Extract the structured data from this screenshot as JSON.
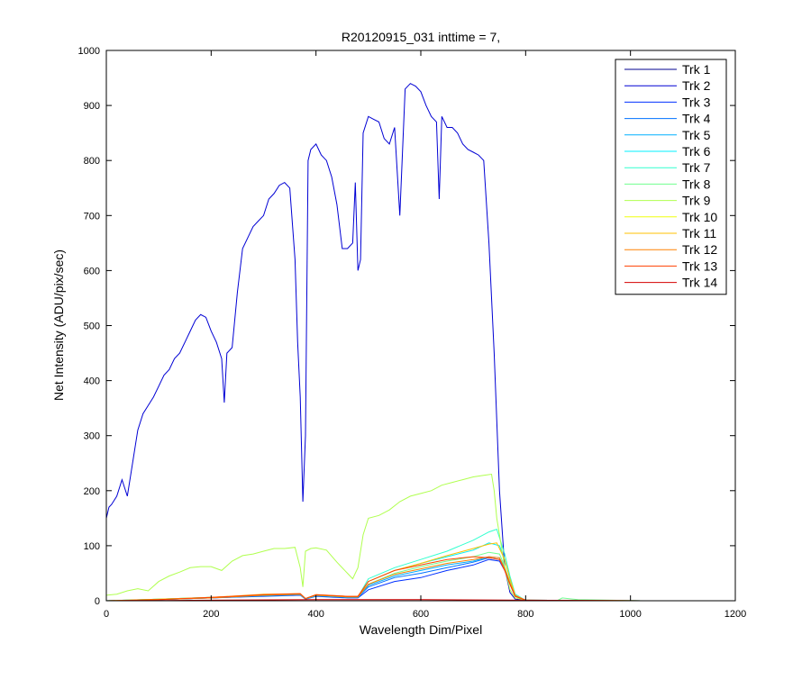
{
  "chart_data": {
    "type": "line",
    "title": "R20120915_031 inttime = 7,",
    "xlabel": "Wavelength Dim/Pixel",
    "ylabel": "Net Intensity (ADU/pix/sec)",
    "xlim": [
      0,
      1200
    ],
    "ylim": [
      0,
      1000
    ],
    "xticks": [
      "0",
      "200",
      "400",
      "600",
      "800",
      "1000",
      "1200"
    ],
    "yticks": [
      "0",
      "100",
      "200",
      "300",
      "400",
      "500",
      "600",
      "700",
      "800",
      "900",
      "1000"
    ],
    "grid": false,
    "legend_position": "top-right",
    "series": [
      {
        "name": "Trk 1",
        "color": "#00008F",
        "x": [],
        "y": []
      },
      {
        "name": "Trk 2",
        "color": "#0000D4",
        "x": [
          0,
          5,
          10,
          20,
          30,
          40,
          50,
          60,
          70,
          80,
          90,
          100,
          110,
          120,
          130,
          140,
          150,
          160,
          170,
          180,
          190,
          200,
          210,
          220,
          225,
          230,
          240,
          250,
          260,
          270,
          280,
          290,
          300,
          310,
          320,
          330,
          340,
          350,
          360,
          365,
          370,
          375,
          380,
          385,
          390,
          400,
          410,
          420,
          430,
          440,
          450,
          460,
          470,
          475,
          480,
          485,
          490,
          500,
          510,
          520,
          530,
          540,
          550,
          560,
          570,
          580,
          590,
          600,
          610,
          620,
          630,
          635,
          640,
          650,
          660,
          670,
          680,
          690,
          700,
          710,
          720,
          730,
          740,
          750,
          760,
          770,
          780,
          790,
          800,
          850,
          900,
          950,
          1000,
          1023
        ],
        "y": [
          150,
          170,
          175,
          190,
          220,
          190,
          250,
          310,
          340,
          355,
          370,
          390,
          410,
          420,
          440,
          450,
          470,
          490,
          510,
          520,
          515,
          490,
          470,
          440,
          360,
          450,
          460,
          560,
          640,
          660,
          680,
          690,
          700,
          730,
          740,
          755,
          760,
          750,
          620,
          470,
          370,
          180,
          300,
          800,
          820,
          830,
          810,
          800,
          770,
          720,
          640,
          640,
          650,
          760,
          600,
          620,
          850,
          880,
          875,
          870,
          840,
          830,
          860,
          700,
          930,
          940,
          935,
          925,
          900,
          880,
          870,
          730,
          880,
          860,
          860,
          850,
          830,
          820,
          815,
          810,
          800,
          650,
          450,
          200,
          60,
          15,
          3,
          2,
          1,
          0,
          0,
          0,
          0,
          0
        ]
      },
      {
        "name": "Trk 3",
        "color": "#0030FF",
        "x": [
          0,
          100,
          200,
          300,
          370,
          380,
          400,
          460,
          480,
          500,
          550,
          600,
          650,
          700,
          730,
          750,
          760,
          770,
          780,
          800,
          1023
        ],
        "y": [
          0,
          2,
          5,
          8,
          10,
          3,
          8,
          5,
          5,
          20,
          35,
          42,
          55,
          65,
          75,
          72,
          55,
          30,
          8,
          1,
          0
        ]
      },
      {
        "name": "Trk 4",
        "color": "#0070FF",
        "x": [
          0,
          100,
          200,
          300,
          370,
          380,
          400,
          460,
          480,
          500,
          550,
          600,
          650,
          700,
          730,
          750,
          760,
          770,
          780,
          800,
          1023
        ],
        "y": [
          0,
          2,
          5,
          9,
          11,
          3,
          9,
          6,
          6,
          25,
          42,
          50,
          60,
          70,
          78,
          75,
          58,
          32,
          9,
          1,
          0
        ]
      },
      {
        "name": "Trk 5",
        "color": "#00B0FF",
        "x": [
          0,
          100,
          200,
          300,
          370,
          380,
          400,
          460,
          480,
          500,
          550,
          600,
          650,
          700,
          730,
          750,
          760,
          770,
          780,
          800,
          1023
        ],
        "y": [
          0,
          2,
          5,
          9,
          11,
          3,
          9,
          6,
          6,
          28,
          45,
          55,
          65,
          72,
          80,
          78,
          60,
          34,
          9,
          1,
          0
        ]
      },
      {
        "name": "Trk 6",
        "color": "#00F0FF",
        "x": [
          0,
          100,
          200,
          300,
          370,
          380,
          400,
          460,
          480,
          500,
          550,
          600,
          650,
          700,
          730,
          750,
          760,
          770,
          780,
          800,
          1023
        ],
        "y": [
          0,
          3,
          6,
          10,
          12,
          4,
          10,
          7,
          7,
          35,
          55,
          68,
          80,
          92,
          105,
          100,
          75,
          40,
          10,
          1,
          0
        ]
      },
      {
        "name": "Trk 7",
        "color": "#30FFCF",
        "x": [
          0,
          100,
          200,
          300,
          370,
          380,
          400,
          460,
          480,
          500,
          550,
          600,
          650,
          700,
          730,
          745,
          760,
          770,
          780,
          800,
          1023
        ],
        "y": [
          0,
          3,
          6,
          10,
          12,
          4,
          10,
          7,
          7,
          40,
          60,
          75,
          90,
          110,
          125,
          130,
          85,
          45,
          12,
          1,
          0
        ]
      },
      {
        "name": "Trk 8",
        "color": "#70FF8F",
        "x": [
          0,
          100,
          200,
          300,
          370,
          380,
          400,
          460,
          480,
          500,
          550,
          600,
          650,
          700,
          730,
          750,
          760,
          770,
          780,
          800,
          860,
          870,
          900,
          1023
        ],
        "y": [
          0,
          3,
          6,
          10,
          12,
          4,
          10,
          7,
          7,
          30,
          50,
          62,
          72,
          80,
          88,
          85,
          62,
          34,
          9,
          1,
          0,
          5,
          2,
          0
        ]
      },
      {
        "name": "Trk 9",
        "color": "#B0FF4F",
        "x": [
          0,
          20,
          40,
          60,
          80,
          100,
          120,
          140,
          160,
          180,
          200,
          220,
          240,
          260,
          280,
          300,
          320,
          340,
          360,
          370,
          375,
          380,
          390,
          400,
          420,
          440,
          460,
          470,
          480,
          490,
          500,
          520,
          540,
          560,
          580,
          600,
          620,
          640,
          660,
          680,
          700,
          720,
          735,
          740,
          745,
          750,
          760,
          770,
          780,
          800,
          850,
          1023
        ],
        "y": [
          10,
          12,
          18,
          22,
          18,
          35,
          45,
          52,
          60,
          62,
          62,
          55,
          72,
          82,
          85,
          90,
          95,
          95,
          97,
          60,
          25,
          90,
          95,
          96,
          92,
          70,
          50,
          40,
          60,
          120,
          150,
          155,
          165,
          180,
          190,
          195,
          200,
          210,
          215,
          220,
          225,
          228,
          230,
          200,
          150,
          120,
          60,
          20,
          5,
          1,
          0,
          0
        ]
      },
      {
        "name": "Trk 10",
        "color": "#F0FF0F",
        "x": [],
        "y": []
      },
      {
        "name": "Trk 11",
        "color": "#FFC000",
        "x": [
          0,
          100,
          200,
          300,
          370,
          380,
          400,
          460,
          480,
          500,
          550,
          600,
          650,
          700,
          730,
          745,
          760,
          770,
          780,
          800,
          1023
        ],
        "y": [
          0,
          3,
          6,
          12,
          13,
          4,
          11,
          8,
          8,
          35,
          55,
          68,
          82,
          95,
          103,
          105,
          75,
          40,
          10,
          1,
          0
        ]
      },
      {
        "name": "Trk 12",
        "color": "#FF8000",
        "x": [
          0,
          100,
          200,
          300,
          370,
          380,
          400,
          460,
          480,
          500,
          550,
          600,
          650,
          700,
          730,
          750,
          760,
          770,
          780,
          800,
          1023
        ],
        "y": [
          0,
          2,
          5,
          10,
          12,
          4,
          10,
          7,
          7,
          30,
          48,
          58,
          68,
          75,
          80,
          78,
          58,
          32,
          9,
          1,
          0
        ]
      },
      {
        "name": "Trk 13",
        "color": "#FF4000",
        "x": [
          0,
          100,
          200,
          300,
          370,
          380,
          400,
          460,
          480,
          500,
          550,
          600,
          650,
          700,
          730,
          750,
          760,
          770,
          780,
          800,
          1023
        ],
        "y": [
          0,
          2,
          6,
          11,
          13,
          4,
          11,
          8,
          8,
          35,
          55,
          65,
          75,
          80,
          78,
          75,
          55,
          30,
          8,
          1,
          0
        ]
      },
      {
        "name": "Trk 14",
        "color": "#D40000",
        "x": [
          0,
          200,
          400,
          600,
          800,
          1023
        ],
        "y": [
          0,
          1,
          2,
          2,
          1,
          0
        ]
      }
    ]
  }
}
